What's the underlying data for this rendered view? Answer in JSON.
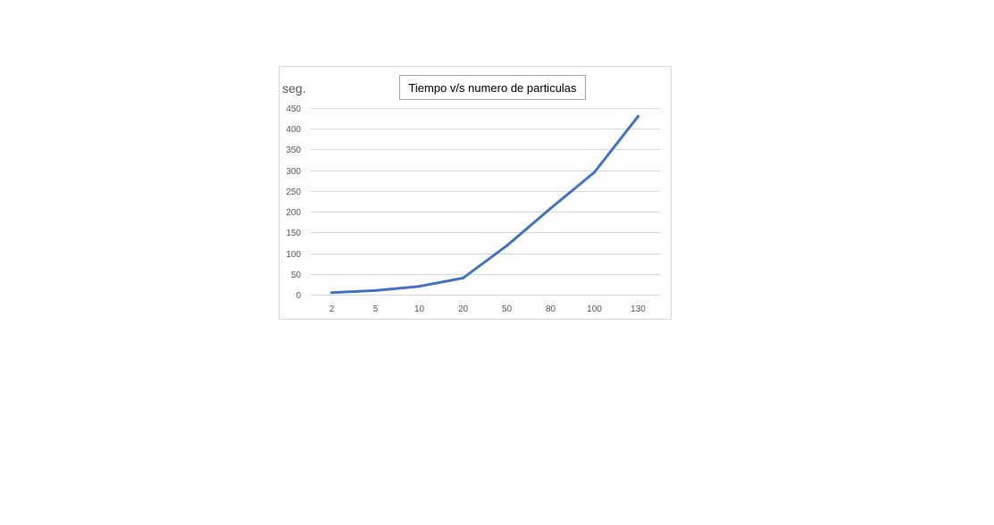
{
  "chart_data": {
    "type": "line",
    "title": "Tiempo v/s numero de particulas",
    "ylabel": "seg.",
    "xlabel": "",
    "categories": [
      "2",
      "5",
      "10",
      "20",
      "50",
      "80",
      "100",
      "130"
    ],
    "series": [
      {
        "values": [
          5,
          10,
          20,
          40,
          118,
          208,
          295,
          430
        ],
        "color": "#4472c4"
      }
    ],
    "ylim": [
      0,
      450
    ],
    "yticks": [
      0,
      50,
      100,
      150,
      200,
      250,
      300,
      350,
      400,
      450
    ],
    "grid": true,
    "legend": "none",
    "gridline_color": "#d9d9d9"
  }
}
